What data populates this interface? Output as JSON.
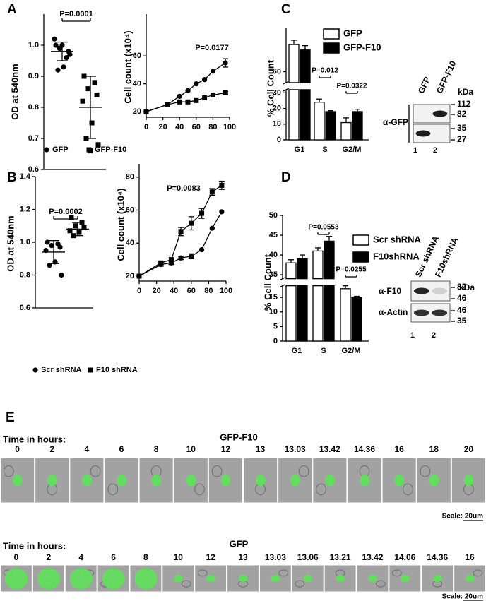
{
  "panel_labels": [
    "A",
    "B",
    "C",
    "D",
    "E"
  ],
  "chart_data": [
    {
      "type": "strip",
      "ylabel": "OD at 540nm",
      "ylim": [
        0.6,
        1.1
      ],
      "yticks": [
        0.6,
        0.7,
        0.8,
        0.9,
        {
          "value": 1,
          "label": "1.0"
        }
      ],
      "series": [
        {
          "marker": "circle",
          "color": "#000000",
          "values": [
            1.0,
            0.96,
            0.99,
            0.98,
            1.02,
            0.93,
            0.92,
            0.97,
            1.0,
            0.99
          ]
        },
        {
          "marker": "square",
          "color": "#000000",
          "values": [
            0.9,
            0.88,
            0.86,
            0.84,
            0.82,
            0.75,
            0.7,
            0.68,
            0.66
          ]
        }
      ],
      "means": [
        0.98,
        0.8
      ],
      "sd": [
        0.03,
        0.1
      ],
      "annotation": "P=0.0001"
    },
    {
      "type": "line",
      "ylabel": "Cell count (x10⁴)",
      "xlim": [
        0,
        100
      ],
      "xticks": [
        0,
        20,
        40,
        60,
        80,
        100
      ],
      "ylim": [
        16,
        90
      ],
      "yticks": [
        20,
        40,
        60
      ],
      "x": [
        0,
        25,
        40,
        50,
        60,
        70,
        80,
        95
      ],
      "series": [
        {
          "name": "GFP",
          "marker": "circle",
          "color": "#000000",
          "values": [
            20,
            25,
            31,
            35,
            40,
            43,
            49,
            55
          ],
          "errors": [
            null,
            null,
            null,
            null,
            null,
            null,
            null,
            3
          ]
        },
        {
          "name": "GFP-F10",
          "marker": "square",
          "color": "#000000",
          "values": [
            20,
            25,
            27,
            27,
            28,
            30,
            32,
            33.5
          ],
          "errors": [
            null,
            null,
            null,
            null,
            null,
            null,
            null,
            1
          ]
        }
      ],
      "annotation": "P=0.0177"
    },
    {
      "type": "strip",
      "ylabel": "OD at 540nm",
      "ylim": [
        0.6,
        1.4
      ],
      "yticks": [
        0.6,
        0.8,
        {
          "value": 1,
          "label": "1.0"
        },
        1.2,
        1.4
      ],
      "series": [
        {
          "marker": "circle",
          "color": "#000000",
          "values": [
            1.0,
            0.99,
            0.98,
            0.97,
            0.95,
            0.88,
            0.86,
            0.8
          ]
        },
        {
          "marker": "square",
          "color": "#000000",
          "values": [
            1.15,
            1.12,
            1.1,
            1.09,
            1.07,
            1.06,
            1.04
          ]
        }
      ],
      "means": [
        0.94,
        1.08
      ],
      "sd": [
        0.07,
        0.04
      ],
      "annotation": "P=0.0002"
    },
    {
      "type": "line",
      "ylabel": "Cell count (x10⁴)",
      "xlim": [
        0,
        100
      ],
      "xticks": [
        0,
        20,
        40,
        60,
        80,
        100
      ],
      "ylim": [
        17,
        88
      ],
      "yticks": [
        20,
        40,
        60,
        80
      ],
      "x": [
        0,
        25,
        37,
        48,
        60,
        72,
        84,
        95
      ],
      "series": [
        {
          "name": "Scr shRNA",
          "marker": "circle",
          "color": "#000000",
          "values": [
            20,
            27,
            28,
            31,
            32,
            36,
            49,
            59
          ],
          "errors": [
            null,
            1,
            1,
            1,
            1.5,
            null,
            null,
            null
          ]
        },
        {
          "name": "F10 shRNA",
          "marker": "square",
          "color": "#000000",
          "values": [
            20,
            28,
            30,
            47,
            52,
            58,
            71,
            75
          ],
          "errors": [
            null,
            1,
            1,
            2.5,
            4,
            3,
            2,
            2.5
          ]
        }
      ],
      "annotation": "P=0.0083"
    },
    {
      "type": "bar",
      "ylabel": "% Cell Count",
      "categories": [
        "G1",
        "S",
        "G2/M"
      ],
      "ylim": [
        0,
        68
      ],
      "axis_break": [
        32,
        58
      ],
      "yticks": [
        0,
        10,
        20,
        30,
        60
      ],
      "series": [
        {
          "name": "GFP",
          "color": "#ffffff",
          "values": [
            65,
            24,
            11
          ],
          "errors": [
            0.8,
            2,
            3
          ]
        },
        {
          "name": "GFP-F10",
          "color": "#000000",
          "values": [
            64,
            18,
            18
          ],
          "errors": [
            0.8,
            0.6,
            1.5
          ]
        }
      ],
      "annotations": [
        "P=0.012",
        "P=0.0322"
      ]
    },
    {
      "type": "bar",
      "ylabel": "% Cell Count",
      "categories": [
        "G1",
        "S",
        "G2/M"
      ],
      "ylim": [
        0,
        50
      ],
      "axis_break": [
        19,
        34
      ],
      "yticks": [
        0,
        5,
        10,
        15,
        35,
        40,
        45,
        50
      ],
      "series": [
        {
          "name": "Scr shRNA",
          "color": "#ffffff",
          "values": [
            38,
            41,
            18
          ],
          "errors": [
            0.8,
            0.8,
            1
          ]
        },
        {
          "name": "F10shRNA",
          "color": "#000000",
          "values": [
            39,
            43.5,
            15
          ],
          "errors": [
            1,
            1.2,
            0.4
          ]
        }
      ],
      "annotations": [
        "P=0.0553",
        "P=0.0255"
      ]
    }
  ],
  "blots": [
    {
      "lanes": [
        "GFP",
        "GFP-F10"
      ],
      "kda_title": "kDa",
      "kda": [
        112,
        82,
        35,
        27
      ],
      "antibodies": [
        "α-GFP"
      ],
      "lane_numbers": [
        1,
        2
      ]
    },
    {
      "lanes": [
        "Scr shRNA",
        "F10shRNA"
      ],
      "kda_title": "kDa",
      "kda": [
        82,
        46,
        46,
        35
      ],
      "antibodies": [
        "α-F10",
        "α-Actin"
      ],
      "lane_numbers": [
        1,
        2
      ]
    }
  ],
  "timelapse": [
    {
      "label": "Time in hours:",
      "title": "GFP-F10",
      "times": [
        0,
        2,
        4,
        6,
        8,
        10,
        12,
        13,
        13.03,
        13.42,
        14.36,
        16,
        18,
        20
      ],
      "scale": "Scale: 20um"
    },
    {
      "label": "Time in hours:",
      "title": "GFP",
      "times": [
        0,
        2,
        4,
        6,
        8,
        10,
        12,
        13,
        13.03,
        13.06,
        13.21,
        13.42,
        14.06,
        14.36,
        16
      ],
      "scale": "Scale: 20um"
    }
  ]
}
